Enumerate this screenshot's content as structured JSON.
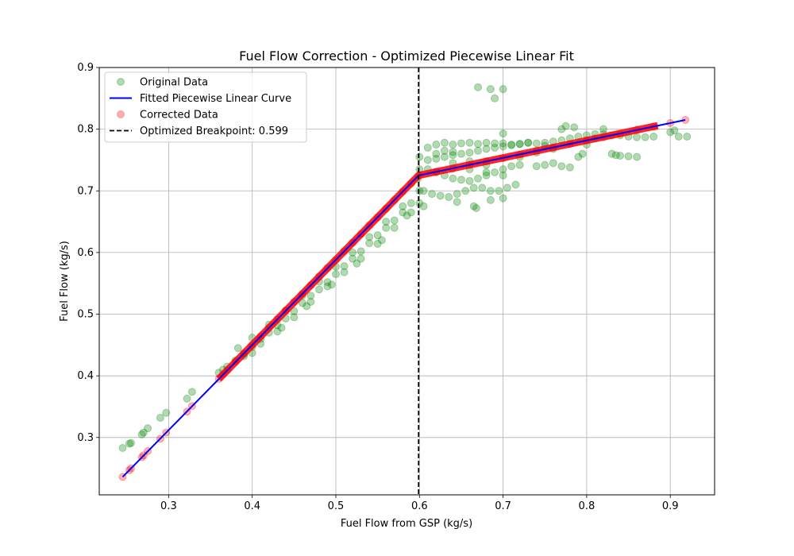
{
  "chart_data": {
    "type": "scatter",
    "title": "Fuel Flow Correction - Optimized Piecewise Linear Fit",
    "xlabel": "Fuel Flow from GSP (kg/s)",
    "ylabel": "Fuel Flow (kg/s)",
    "xlim": [
      0.217,
      0.953
    ],
    "ylim": [
      0.207,
      0.9
    ],
    "xticks": [
      "0.3",
      "0.4",
      "0.5",
      "0.6",
      "0.7",
      "0.8",
      "0.9"
    ],
    "yticks": [
      "0.3",
      "0.4",
      "0.5",
      "0.6",
      "0.7",
      "0.8",
      "0.9"
    ],
    "grid": true,
    "legend_position": "top-left",
    "breakpoint": 0.599,
    "series": [
      {
        "name": "Original Data",
        "kind": "scatter",
        "color": "#008000",
        "opacity": 0.3,
        "points": [
          [
            0.245,
            0.283
          ],
          [
            0.253,
            0.29
          ],
          [
            0.255,
            0.291
          ],
          [
            0.268,
            0.305
          ],
          [
            0.27,
            0.308
          ],
          [
            0.275,
            0.315
          ],
          [
            0.29,
            0.332
          ],
          [
            0.297,
            0.34
          ],
          [
            0.322,
            0.363
          ],
          [
            0.328,
            0.374
          ],
          [
            0.36,
            0.405
          ],
          [
            0.365,
            0.41
          ],
          [
            0.37,
            0.415
          ],
          [
            0.38,
            0.425
          ],
          [
            0.39,
            0.435
          ],
          [
            0.4,
            0.447
          ],
          [
            0.41,
            0.46
          ],
          [
            0.42,
            0.47
          ],
          [
            0.43,
            0.482
          ],
          [
            0.44,
            0.493
          ],
          [
            0.45,
            0.505
          ],
          [
            0.46,
            0.518
          ],
          [
            0.47,
            0.53
          ],
          [
            0.48,
            0.54
          ],
          [
            0.49,
            0.552
          ],
          [
            0.5,
            0.565
          ],
          [
            0.51,
            0.578
          ],
          [
            0.52,
            0.59
          ],
          [
            0.53,
            0.602
          ],
          [
            0.54,
            0.615
          ],
          [
            0.55,
            0.628
          ],
          [
            0.56,
            0.64
          ],
          [
            0.57,
            0.652
          ],
          [
            0.58,
            0.665
          ],
          [
            0.59,
            0.68
          ],
          [
            0.6,
            0.7
          ],
          [
            0.383,
            0.445
          ],
          [
            0.4,
            0.462
          ],
          [
            0.42,
            0.483
          ],
          [
            0.44,
            0.506
          ],
          [
            0.46,
            0.53
          ],
          [
            0.48,
            0.553
          ],
          [
            0.5,
            0.577
          ],
          [
            0.52,
            0.6
          ],
          [
            0.54,
            0.625
          ],
          [
            0.56,
            0.65
          ],
          [
            0.58,
            0.675
          ],
          [
            0.598,
            0.72
          ],
          [
            0.39,
            0.432
          ],
          [
            0.41,
            0.452
          ],
          [
            0.43,
            0.472
          ],
          [
            0.45,
            0.495
          ],
          [
            0.47,
            0.52
          ],
          [
            0.49,
            0.545
          ],
          [
            0.51,
            0.568
          ],
          [
            0.53,
            0.59
          ],
          [
            0.55,
            0.614
          ],
          [
            0.57,
            0.64
          ],
          [
            0.59,
            0.665
          ],
          [
            0.6,
            0.735
          ],
          [
            0.4,
            0.437
          ],
          [
            0.435,
            0.478
          ],
          [
            0.465,
            0.513
          ],
          [
            0.495,
            0.548
          ],
          [
            0.525,
            0.582
          ],
          [
            0.555,
            0.62
          ],
          [
            0.585,
            0.66
          ],
          [
            0.6,
            0.755
          ],
          [
            0.61,
            0.77
          ],
          [
            0.62,
            0.775
          ],
          [
            0.63,
            0.778
          ],
          [
            0.64,
            0.775
          ],
          [
            0.65,
            0.777
          ],
          [
            0.66,
            0.778
          ],
          [
            0.67,
            0.776
          ],
          [
            0.68,
            0.778
          ],
          [
            0.69,
            0.777
          ],
          [
            0.7,
            0.777
          ],
          [
            0.71,
            0.775
          ],
          [
            0.72,
            0.776
          ],
          [
            0.73,
            0.778
          ],
          [
            0.74,
            0.777
          ],
          [
            0.75,
            0.778
          ],
          [
            0.76,
            0.78
          ],
          [
            0.77,
            0.782
          ],
          [
            0.78,
            0.785
          ],
          [
            0.79,
            0.788
          ],
          [
            0.8,
            0.79
          ],
          [
            0.81,
            0.792
          ],
          [
            0.82,
            0.792
          ],
          [
            0.83,
            0.79
          ],
          [
            0.84,
            0.79
          ],
          [
            0.85,
            0.788
          ],
          [
            0.86,
            0.787
          ],
          [
            0.87,
            0.787
          ],
          [
            0.88,
            0.788
          ],
          [
            0.61,
            0.75
          ],
          [
            0.62,
            0.752
          ],
          [
            0.63,
            0.755
          ],
          [
            0.64,
            0.758
          ],
          [
            0.65,
            0.76
          ],
          [
            0.66,
            0.762
          ],
          [
            0.67,
            0.765
          ],
          [
            0.68,
            0.768
          ],
          [
            0.69,
            0.77
          ],
          [
            0.7,
            0.772
          ],
          [
            0.71,
            0.774
          ],
          [
            0.72,
            0.776
          ],
          [
            0.61,
            0.735
          ],
          [
            0.62,
            0.73
          ],
          [
            0.63,
            0.725
          ],
          [
            0.64,
            0.72
          ],
          [
            0.65,
            0.718
          ],
          [
            0.66,
            0.716
          ],
          [
            0.67,
            0.72
          ],
          [
            0.68,
            0.725
          ],
          [
            0.69,
            0.73
          ],
          [
            0.7,
            0.735
          ],
          [
            0.71,
            0.74
          ],
          [
            0.72,
            0.742
          ],
          [
            0.605,
            0.7
          ],
          [
            0.615,
            0.695
          ],
          [
            0.625,
            0.692
          ],
          [
            0.635,
            0.69
          ],
          [
            0.645,
            0.695
          ],
          [
            0.655,
            0.7
          ],
          [
            0.665,
            0.705
          ],
          [
            0.675,
            0.705
          ],
          [
            0.685,
            0.7
          ],
          [
            0.695,
            0.7
          ],
          [
            0.705,
            0.705
          ],
          [
            0.715,
            0.71
          ],
          [
            0.6,
            0.68
          ],
          [
            0.605,
            0.675
          ],
          [
            0.645,
            0.682
          ],
          [
            0.665,
            0.675
          ],
          [
            0.668,
            0.672
          ],
          [
            0.685,
            0.685
          ],
          [
            0.7,
            0.688
          ],
          [
            0.74,
            0.74
          ],
          [
            0.75,
            0.742
          ],
          [
            0.76,
            0.745
          ],
          [
            0.77,
            0.74
          ],
          [
            0.78,
            0.738
          ],
          [
            0.79,
            0.755
          ],
          [
            0.795,
            0.76
          ],
          [
            0.8,
            0.775
          ],
          [
            0.81,
            0.785
          ],
          [
            0.82,
            0.8
          ],
          [
            0.83,
            0.76
          ],
          [
            0.835,
            0.758
          ],
          [
            0.84,
            0.757
          ],
          [
            0.85,
            0.756
          ],
          [
            0.86,
            0.755
          ],
          [
            0.77,
            0.8
          ],
          [
            0.775,
            0.805
          ],
          [
            0.785,
            0.803
          ],
          [
            0.73,
            0.778
          ],
          [
            0.75,
            0.773
          ],
          [
            0.7,
            0.793
          ],
          [
            0.67,
            0.868
          ],
          [
            0.685,
            0.865
          ],
          [
            0.69,
            0.85
          ],
          [
            0.7,
            0.865
          ],
          [
            0.9,
            0.795
          ],
          [
            0.905,
            0.798
          ],
          [
            0.91,
            0.788
          ],
          [
            0.92,
            0.788
          ],
          [
            0.64,
            0.745
          ],
          [
            0.66,
            0.748
          ],
          [
            0.68,
            0.742
          ],
          [
            0.72,
            0.755
          ],
          [
            0.74,
            0.762
          ],
          [
            0.76,
            0.768
          ],
          [
            0.62,
            0.76
          ],
          [
            0.63,
            0.765
          ],
          [
            0.64,
            0.763
          ],
          [
            0.66,
            0.735
          ],
          [
            0.68,
            0.73
          ],
          [
            0.7,
            0.725
          ]
        ]
      },
      {
        "name": "Fitted Piecewise Linear Curve",
        "kind": "line",
        "color": "#0000ff",
        "points": [
          [
            0.245,
            0.236
          ],
          [
            0.599,
            0.725
          ],
          [
            0.918,
            0.815
          ]
        ]
      },
      {
        "name": "Corrected Data",
        "kind": "scatter",
        "color": "#ff0000",
        "opacity": 0.3,
        "points": [
          [
            0.245,
            0.236
          ],
          [
            0.253,
            0.247
          ],
          [
            0.255,
            0.25
          ],
          [
            0.268,
            0.268
          ],
          [
            0.27,
            0.271
          ],
          [
            0.275,
            0.278
          ],
          [
            0.29,
            0.298
          ],
          [
            0.297,
            0.308
          ],
          [
            0.322,
            0.342
          ],
          [
            0.328,
            0.351
          ],
          [
            0.36,
            0.395
          ],
          [
            0.365,
            0.402
          ],
          [
            0.37,
            0.409
          ],
          [
            0.38,
            0.423
          ],
          [
            0.39,
            0.437
          ],
          [
            0.4,
            0.45
          ],
          [
            0.41,
            0.464
          ],
          [
            0.42,
            0.478
          ],
          [
            0.43,
            0.492
          ],
          [
            0.44,
            0.506
          ],
          [
            0.45,
            0.52
          ],
          [
            0.46,
            0.533
          ],
          [
            0.47,
            0.547
          ],
          [
            0.48,
            0.561
          ],
          [
            0.49,
            0.575
          ],
          [
            0.5,
            0.588
          ],
          [
            0.51,
            0.602
          ],
          [
            0.52,
            0.616
          ],
          [
            0.53,
            0.63
          ],
          [
            0.54,
            0.644
          ],
          [
            0.55,
            0.657
          ],
          [
            0.56,
            0.671
          ],
          [
            0.57,
            0.685
          ],
          [
            0.58,
            0.699
          ],
          [
            0.59,
            0.712
          ],
          [
            0.6,
            0.725
          ],
          [
            0.62,
            0.731
          ],
          [
            0.64,
            0.736
          ],
          [
            0.66,
            0.742
          ],
          [
            0.68,
            0.748
          ],
          [
            0.7,
            0.753
          ],
          [
            0.72,
            0.759
          ],
          [
            0.74,
            0.765
          ],
          [
            0.76,
            0.77
          ],
          [
            0.78,
            0.776
          ],
          [
            0.8,
            0.782
          ],
          [
            0.82,
            0.787
          ],
          [
            0.84,
            0.793
          ],
          [
            0.86,
            0.799
          ],
          [
            0.88,
            0.804
          ],
          [
            0.9,
            0.81
          ],
          [
            0.918,
            0.815
          ]
        ]
      },
      {
        "name": "Optimized Breakpoint: 0.599",
        "kind": "vline",
        "color": "#000000",
        "x": 0.599
      }
    ]
  }
}
